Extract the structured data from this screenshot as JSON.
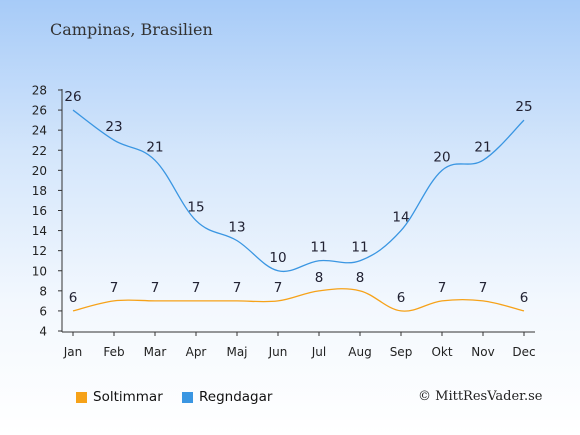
{
  "title": "Campinas, Brasilien",
  "copyright": "© MittResVader.se",
  "colors": {
    "sun": "#f6a219",
    "rain": "#3a96e2"
  },
  "chart_data": {
    "type": "line",
    "categories": [
      "Jan",
      "Feb",
      "Mar",
      "Apr",
      "Maj",
      "Jun",
      "Jul",
      "Aug",
      "Sep",
      "Okt",
      "Nov",
      "Dec"
    ],
    "yticks": [
      4,
      6,
      8,
      10,
      12,
      14,
      16,
      18,
      20,
      22,
      24,
      26,
      28
    ],
    "ylim": [
      4,
      28
    ],
    "series": [
      {
        "name": "Soltimmar",
        "values": [
          6,
          7,
          7,
          7,
          7,
          7,
          8,
          8,
          6,
          7,
          7,
          6
        ]
      },
      {
        "name": "Regndagar",
        "values": [
          26,
          23,
          21,
          15,
          13,
          10,
          11,
          11,
          14,
          20,
          21,
          25
        ]
      }
    ],
    "legend_position": "bottom-left"
  }
}
